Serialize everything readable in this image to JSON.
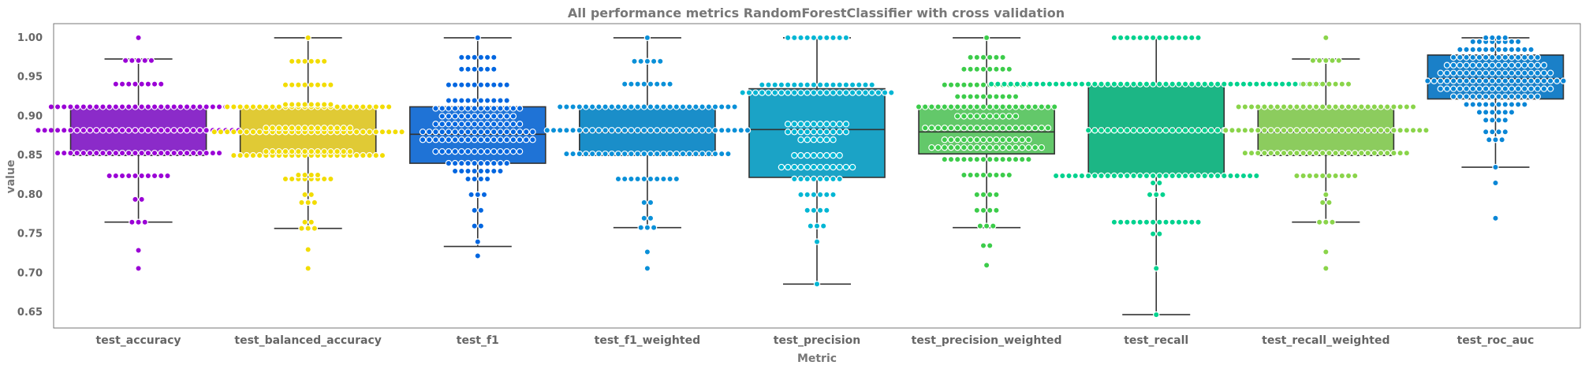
{
  "chart_data": {
    "type": "boxplot_swarm",
    "title": "All performance metrics RandomForestClassifier with cross validation",
    "xlabel": "Metric",
    "ylabel": "value",
    "ylim": [
      0.63,
      1.018
    ],
    "yticks": [
      "0.65",
      "0.70",
      "0.75",
      "0.80",
      "0.85",
      "0.90",
      "0.95",
      "1.00"
    ],
    "grid": false,
    "categories": [
      "test_accuracy",
      "test_balanced_accuracy",
      "test_f1",
      "test_f1_weighted",
      "test_precision",
      "test_precision_weighted",
      "test_recall",
      "test_recall_weighted",
      "test_roc_auc"
    ],
    "colors": {
      "test_accuracy": "#8b2bc9",
      "test_balanced_accuracy": "#e0ca35",
      "test_f1": "#1f73d6",
      "test_f1_weighted": "#1a8ec9",
      "test_precision": "#1ba3c6",
      "test_precision_weighted": "#63c86a",
      "test_recall": "#1cb685",
      "test_recall_weighted": "#8ccc5e",
      "test_roc_auc": "#1a80c8"
    },
    "swarm_colors": {
      "test_accuracy": "#9a00d6",
      "test_balanced_accuracy": "#f2dc00",
      "test_f1": "#0066e0",
      "test_f1_weighted": "#0a90d8",
      "test_precision": "#00b6d4",
      "test_precision_weighted": "#3ccc4a",
      "test_recall": "#00d28e",
      "test_recall_weighted": "#8ad44a",
      "test_roc_auc": "#0a86d6"
    },
    "boxes": [
      {
        "name": "test_accuracy",
        "q1": 0.85,
        "median": 0.882,
        "q3": 0.912,
        "whislo": 0.765,
        "whishi": 0.973
      },
      {
        "name": "test_balanced_accuracy",
        "q1": 0.85,
        "median": 0.88,
        "q3": 0.912,
        "whislo": 0.757,
        "whishi": 1.0
      },
      {
        "name": "test_f1",
        "q1": 0.84,
        "median": 0.877,
        "q3": 0.912,
        "whislo": 0.734,
        "whishi": 1.0
      },
      {
        "name": "test_f1_weighted",
        "q1": 0.85,
        "median": 0.88,
        "q3": 0.912,
        "whislo": 0.758,
        "whishi": 1.0
      },
      {
        "name": "test_precision",
        "q1": 0.822,
        "median": 0.883,
        "q3": 0.935,
        "whislo": 0.686,
        "whishi": 1.0
      },
      {
        "name": "test_precision_weighted",
        "q1": 0.852,
        "median": 0.88,
        "q3": 0.913,
        "whislo": 0.758,
        "whishi": 1.0
      },
      {
        "name": "test_recall",
        "q1": 0.824,
        "median": 0.884,
        "q3": 0.94,
        "whislo": 0.647,
        "whishi": 1.0
      },
      {
        "name": "test_recall_weighted",
        "q1": 0.85,
        "median": 0.88,
        "q3": 0.912,
        "whislo": 0.765,
        "whishi": 0.973
      },
      {
        "name": "test_roc_auc",
        "q1": 0.922,
        "median": 0.948,
        "q3": 0.978,
        "whislo": 0.835,
        "whishi": 1.0
      }
    ],
    "swarm_points": {
      "test_accuracy": [
        [
          0.706,
          1
        ],
        [
          0.729,
          1
        ],
        [
          0.765,
          3
        ],
        [
          0.794,
          2
        ],
        [
          0.824,
          10
        ],
        [
          0.853,
          26
        ],
        [
          0.882,
          32
        ],
        [
          0.912,
          28
        ],
        [
          0.941,
          8
        ],
        [
          0.971,
          5
        ],
        [
          1.0,
          1
        ]
      ],
      "test_balanced_accuracy": [
        [
          0.706,
          1
        ],
        [
          0.73,
          1
        ],
        [
          0.757,
          3
        ],
        [
          0.765,
          2
        ],
        [
          0.79,
          3
        ],
        [
          0.8,
          2
        ],
        [
          0.82,
          8
        ],
        [
          0.825,
          4
        ],
        [
          0.85,
          24
        ],
        [
          0.855,
          14
        ],
        [
          0.88,
          30
        ],
        [
          0.885,
          14
        ],
        [
          0.912,
          26
        ],
        [
          0.915,
          8
        ],
        [
          0.94,
          8
        ],
        [
          0.97,
          6
        ],
        [
          1.0,
          1
        ]
      ],
      "test_f1": [
        [
          0.722,
          1
        ],
        [
          0.74,
          1
        ],
        [
          0.76,
          2
        ],
        [
          0.78,
          2
        ],
        [
          0.8,
          3
        ],
        [
          0.82,
          4
        ],
        [
          0.83,
          8
        ],
        [
          0.84,
          10
        ],
        [
          0.855,
          14
        ],
        [
          0.87,
          18
        ],
        [
          0.88,
          18
        ],
        [
          0.89,
          14
        ],
        [
          0.9,
          12
        ],
        [
          0.91,
          14
        ],
        [
          0.92,
          10
        ],
        [
          0.94,
          10
        ],
        [
          0.96,
          6
        ],
        [
          0.975,
          6
        ],
        [
          1.0,
          1
        ]
      ],
      "test_f1_weighted": [
        [
          0.706,
          1
        ],
        [
          0.727,
          1
        ],
        [
          0.758,
          3
        ],
        [
          0.77,
          2
        ],
        [
          0.79,
          2
        ],
        [
          0.82,
          10
        ],
        [
          0.852,
          26
        ],
        [
          0.882,
          32
        ],
        [
          0.912,
          28
        ],
        [
          0.941,
          8
        ],
        [
          0.97,
          5
        ],
        [
          1.0,
          1
        ]
      ],
      "test_precision": [
        [
          0.686,
          1
        ],
        [
          0.74,
          1
        ],
        [
          0.76,
          3
        ],
        [
          0.78,
          4
        ],
        [
          0.8,
          6
        ],
        [
          0.82,
          8
        ],
        [
          0.835,
          12
        ],
        [
          0.85,
          8
        ],
        [
          0.87,
          6
        ],
        [
          0.88,
          10
        ],
        [
          0.89,
          10
        ],
        [
          0.93,
          24
        ],
        [
          0.94,
          18
        ],
        [
          1.0,
          10
        ]
      ],
      "test_precision_weighted": [
        [
          0.71,
          1
        ],
        [
          0.735,
          2
        ],
        [
          0.76,
          3
        ],
        [
          0.78,
          4
        ],
        [
          0.8,
          4
        ],
        [
          0.825,
          8
        ],
        [
          0.845,
          14
        ],
        [
          0.86,
          18
        ],
        [
          0.87,
          14
        ],
        [
          0.885,
          20
        ],
        [
          0.9,
          10
        ],
        [
          0.912,
          22
        ],
        [
          0.925,
          10
        ],
        [
          0.94,
          14
        ],
        [
          0.96,
          8
        ],
        [
          0.975,
          6
        ],
        [
          1.0,
          1
        ]
      ],
      "test_recall": [
        [
          0.647,
          1
        ],
        [
          0.706,
          1
        ],
        [
          0.75,
          2
        ],
        [
          0.765,
          14
        ],
        [
          0.8,
          3
        ],
        [
          0.815,
          2
        ],
        [
          0.824,
          32
        ],
        [
          0.882,
          22
        ],
        [
          0.941,
          52
        ],
        [
          1.0,
          14
        ]
      ],
      "test_recall_weighted": [
        [
          0.706,
          1
        ],
        [
          0.727,
          1
        ],
        [
          0.765,
          3
        ],
        [
          0.79,
          2
        ],
        [
          0.8,
          1
        ],
        [
          0.824,
          10
        ],
        [
          0.853,
          26
        ],
        [
          0.882,
          32
        ],
        [
          0.912,
          28
        ],
        [
          0.941,
          8
        ],
        [
          0.971,
          5
        ],
        [
          1.0,
          1
        ]
      ],
      "test_roc_auc": [
        [
          0.77,
          1
        ],
        [
          0.815,
          1
        ],
        [
          0.835,
          1
        ],
        [
          0.87,
          3
        ],
        [
          0.88,
          4
        ],
        [
          0.895,
          4
        ],
        [
          0.905,
          6
        ],
        [
          0.915,
          10
        ],
        [
          0.925,
          14
        ],
        [
          0.935,
          18
        ],
        [
          0.945,
          22
        ],
        [
          0.955,
          18
        ],
        [
          0.965,
          16
        ],
        [
          0.975,
          14
        ],
        [
          0.985,
          12
        ],
        [
          0.995,
          8
        ],
        [
          1.0,
          4
        ]
      ]
    }
  }
}
